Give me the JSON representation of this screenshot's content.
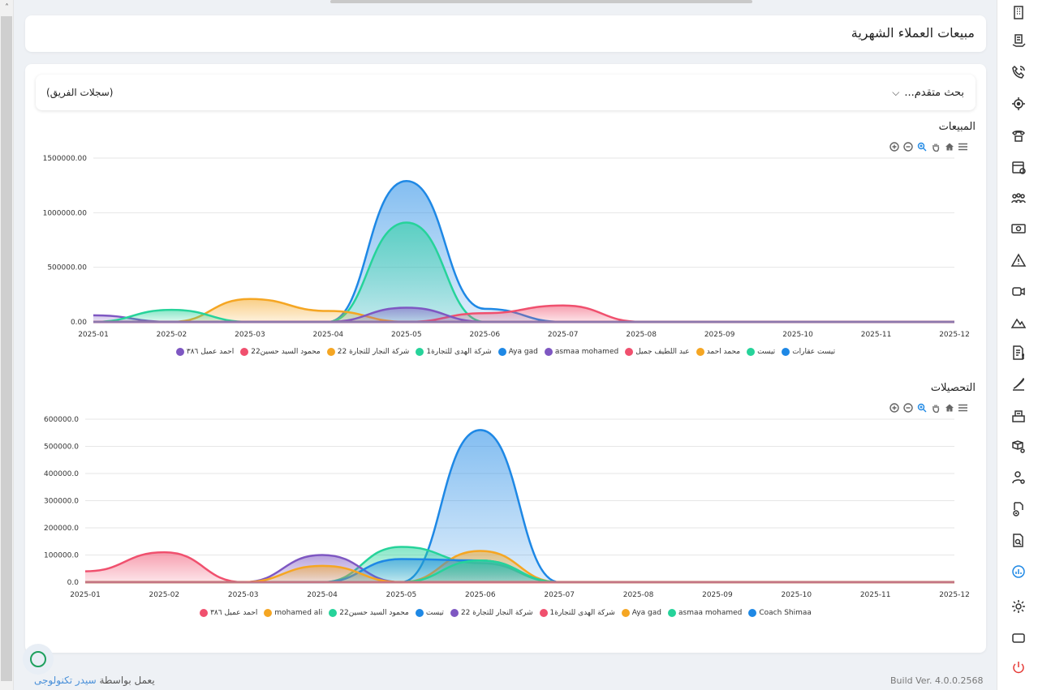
{
  "header": {
    "title": "مبيعات العملاء الشهرية"
  },
  "filter": {
    "advanced_search": "بحث متقدم...",
    "team_records": "(سجلات الفريق)"
  },
  "chart_data": [
    {
      "type": "area",
      "title": "المبيعات",
      "categories": [
        "2025-01",
        "2025-02",
        "2025-03",
        "2025-04",
        "2025-05",
        "2025-06",
        "2025-07",
        "2025-08",
        "2025-09",
        "2025-10",
        "2025-11",
        "2025-12"
      ],
      "ylim": [
        0,
        1500000
      ],
      "yticks": [
        "0.00",
        "500000.00",
        "1000000.00",
        "1500000.00"
      ],
      "series": [
        {
          "name": "تيست عقارات",
          "color": "#1e88e5",
          "values": [
            0,
            0,
            0,
            0,
            1290000,
            120000,
            0,
            0,
            0,
            0,
            0,
            0
          ]
        },
        {
          "name": "تيست",
          "color": "#26d39a",
          "values": [
            0,
            0,
            0,
            0,
            910000,
            0,
            0,
            0,
            0,
            0,
            0,
            0
          ]
        },
        {
          "name": "محمد احمد",
          "color": "#f5a623",
          "values": [
            0,
            0,
            210000,
            100000,
            0,
            0,
            0,
            0,
            0,
            0,
            0,
            0
          ]
        },
        {
          "name": "عبد اللطيف جميل",
          "color": "#f0506e",
          "values": [
            0,
            0,
            0,
            0,
            0,
            80000,
            150000,
            0,
            0,
            0,
            0,
            0
          ]
        },
        {
          "name": "asmaa mohamed",
          "color": "#7e57c2",
          "values": [
            60000,
            0,
            0,
            0,
            130000,
            0,
            0,
            0,
            0,
            0,
            0,
            0
          ]
        },
        {
          "name": "Aya gad",
          "color": "#1e88e5",
          "values": [
            0,
            0,
            0,
            0,
            0,
            0,
            0,
            0,
            0,
            0,
            0,
            0
          ]
        },
        {
          "name": "شركة الهدى للتجارة1",
          "color": "#26d39a",
          "values": [
            0,
            110000,
            0,
            0,
            0,
            0,
            0,
            0,
            0,
            0,
            0,
            0
          ]
        },
        {
          "name": "شركة النجار للتجارة 22",
          "color": "#f5a623",
          "values": [
            0,
            0,
            0,
            0,
            0,
            0,
            0,
            0,
            0,
            0,
            0,
            0
          ]
        },
        {
          "name": "محمود السيد حسين22",
          "color": "#f0506e",
          "values": [
            0,
            0,
            0,
            0,
            0,
            0,
            0,
            0,
            0,
            0,
            0,
            0
          ]
        },
        {
          "name": "احمد عميل ٣٨٦",
          "color": "#7e57c2",
          "values": [
            0,
            0,
            0,
            0,
            0,
            0,
            0,
            0,
            0,
            0,
            0,
            0
          ]
        }
      ]
    },
    {
      "type": "area",
      "title": "التحصيلات",
      "categories": [
        "2025-01",
        "2025-02",
        "2025-03",
        "2025-04",
        "2025-05",
        "2025-06",
        "2025-07",
        "2025-08",
        "2025-09",
        "2025-10",
        "2025-11",
        "2025-12"
      ],
      "ylim": [
        0,
        600000
      ],
      "yticks": [
        "0.0",
        "100000.0",
        "200000.0",
        "300000.0",
        "400000.0",
        "500000.0",
        "600000.0"
      ],
      "series": [
        {
          "name": "Coach Shimaa",
          "color": "#1e88e5",
          "values": [
            0,
            0,
            0,
            0,
            0,
            560000,
            0,
            0,
            0,
            0,
            0,
            0
          ]
        },
        {
          "name": "asmaa mohamed",
          "color": "#26d39a",
          "values": [
            0,
            0,
            0,
            0,
            130000,
            70000,
            0,
            0,
            0,
            0,
            0,
            0
          ]
        },
        {
          "name": "Aya gad",
          "color": "#f5a623",
          "values": [
            0,
            0,
            0,
            0,
            0,
            115000,
            0,
            0,
            0,
            0,
            0,
            0
          ]
        },
        {
          "name": "شركة الهدى للتجارة1",
          "color": "#f0506e",
          "values": [
            40000,
            110000,
            0,
            0,
            0,
            0,
            0,
            0,
            0,
            0,
            0,
            0
          ]
        },
        {
          "name": "شركة النجار للتجارة 22",
          "color": "#7e57c2",
          "values": [
            0,
            0,
            0,
            100000,
            0,
            0,
            0,
            0,
            0,
            0,
            0,
            0
          ]
        },
        {
          "name": "تيست",
          "color": "#1e88e5",
          "values": [
            0,
            0,
            0,
            0,
            85000,
            80000,
            0,
            0,
            0,
            0,
            0,
            0
          ]
        },
        {
          "name": "محمود السيد حسين22",
          "color": "#26d39a",
          "values": [
            0,
            0,
            0,
            0,
            0,
            80000,
            0,
            0,
            0,
            0,
            0,
            0
          ]
        },
        {
          "name": "mohamed ali",
          "color": "#f5a623",
          "values": [
            0,
            0,
            0,
            60000,
            0,
            0,
            0,
            0,
            0,
            0,
            0,
            0
          ]
        },
        {
          "name": "احمد عميل ٣٨٦",
          "color": "#f0506e",
          "values": [
            0,
            0,
            0,
            0,
            0,
            0,
            0,
            0,
            0,
            0,
            0,
            0
          ]
        }
      ]
    }
  ],
  "toolbar_icons": [
    "zoom-in-icon",
    "zoom-out-icon",
    "zoom-select-icon",
    "pan-hand-icon",
    "home-icon",
    "menu-icon"
  ],
  "sidebar_icons": [
    "building-icon",
    "receipt-hand-icon",
    "phone-call-icon",
    "target-icon",
    "telephone-icon",
    "calendar-add-icon",
    "team-icon",
    "money-icon",
    "warning-icon",
    "video-call-icon",
    "landscape-icon",
    "invoice-dollar-icon",
    "signature-icon",
    "cash-register-icon",
    "delivery-icon",
    "user-settings-icon",
    "user-add-document-icon",
    "document-search-icon",
    "analytics-icon",
    "settings-icon",
    "window-icon",
    "power-icon"
  ],
  "footer": {
    "powered_prefix": "يعمل بواسطة",
    "powered_brand": "سيدر تكنولوجى",
    "build": "Build Ver. 4.0.0.2568"
  },
  "colors": {
    "accent": "#1e88e5",
    "active_sidebar": "#1e88e5",
    "logout": "#e53935"
  }
}
